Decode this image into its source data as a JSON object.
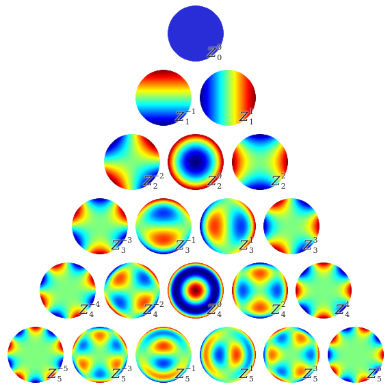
{
  "rows": [
    [
      {
        "n": 0,
        "m": 0,
        "label": "Z",
        "sup": "0",
        "sub": "0"
      }
    ],
    [
      {
        "n": 1,
        "m": -1,
        "label": "Z",
        "sup": "−1",
        "sub": "1"
      },
      {
        "n": 1,
        "m": 1,
        "label": "Z",
        "sup": "1",
        "sub": "1"
      }
    ],
    [
      {
        "n": 2,
        "m": -2,
        "label": "Z",
        "sup": "−2",
        "sub": "2"
      },
      {
        "n": 2,
        "m": 0,
        "label": "Z",
        "sup": "0",
        "sub": "2"
      },
      {
        "n": 2,
        "m": 2,
        "label": "Z",
        "sup": "2",
        "sub": "2"
      }
    ],
    [
      {
        "n": 3,
        "m": -3,
        "label": "Z",
        "sup": "−3",
        "sub": "3"
      },
      {
        "n": 3,
        "m": -1,
        "label": "Z",
        "sup": "−1",
        "sub": "3"
      },
      {
        "n": 3,
        "m": 1,
        "label": "Z",
        "sup": "1",
        "sub": "3"
      },
      {
        "n": 3,
        "m": 3,
        "label": "Z",
        "sup": "3",
        "sub": "3"
      }
    ],
    [
      {
        "n": 4,
        "m": -4,
        "label": "Z",
        "sup": "−4",
        "sub": "4"
      },
      {
        "n": 4,
        "m": -2,
        "label": "Z",
        "sup": "−2",
        "sub": "4"
      },
      {
        "n": 4,
        "m": 0,
        "label": "Z",
        "sup": "0",
        "sub": "4"
      },
      {
        "n": 4,
        "m": 2,
        "label": "Z",
        "sup": "2",
        "sub": "4"
      },
      {
        "n": 4,
        "m": 4,
        "label": "Z",
        "sup": "4",
        "sub": "4"
      }
    ],
    [
      {
        "n": 5,
        "m": -5,
        "label": "Z",
        "sup": "−5",
        "sub": "5"
      },
      {
        "n": 5,
        "m": -3,
        "label": "Z",
        "sup": "−3",
        "sub": "5"
      },
      {
        "n": 5,
        "m": -1,
        "label": "Z",
        "sup": "−1",
        "sub": "5"
      },
      {
        "n": 5,
        "m": 1,
        "label": "Z",
        "sup": "1",
        "sub": "5"
      },
      {
        "n": 5,
        "m": 3,
        "label": "Z",
        "sup": "3",
        "sub": "5"
      },
      {
        "n": 5,
        "m": 5,
        "label": "Z",
        "sup": "5",
        "sub": "5"
      }
    ]
  ],
  "colormap": "jet"
}
